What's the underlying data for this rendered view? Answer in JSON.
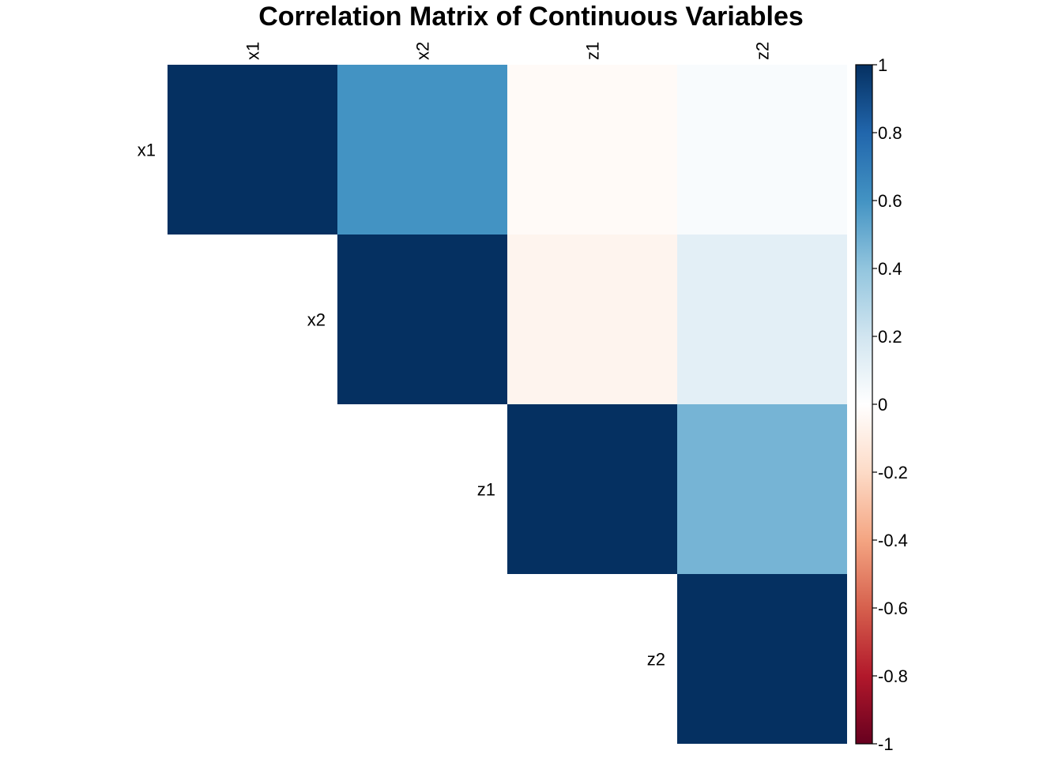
{
  "chart_data": {
    "type": "heatmap",
    "title": "Correlation Matrix of Continuous Variables",
    "layout": "upper-triangle",
    "variables": [
      "x1",
      "x2",
      "z1",
      "z2"
    ],
    "matrix": [
      [
        1.0,
        0.6,
        -0.03,
        0.03
      ],
      [
        null,
        1.0,
        -0.06,
        0.12
      ],
      [
        null,
        null,
        1.0,
        0.47
      ],
      [
        null,
        null,
        null,
        1.0
      ]
    ],
    "colorbar": {
      "range": [
        -1,
        1
      ],
      "ticks": [
        "1",
        "0.8",
        "0.6",
        "0.4",
        "0.2",
        "0",
        "-0.2",
        "-0.4",
        "-0.6",
        "-0.8",
        "-1"
      ],
      "tick_values": [
        1,
        0.8,
        0.6,
        0.4,
        0.2,
        0,
        -0.2,
        -0.4,
        -0.6,
        -0.8,
        -1
      ],
      "colors": [
        "#67001F",
        "#B2182B",
        "#D6604D",
        "#F4A582",
        "#FDDBC7",
        "#FFFFFF",
        "#D1E5F0",
        "#92C5DE",
        "#4393C3",
        "#2166AC",
        "#053061"
      ]
    }
  }
}
